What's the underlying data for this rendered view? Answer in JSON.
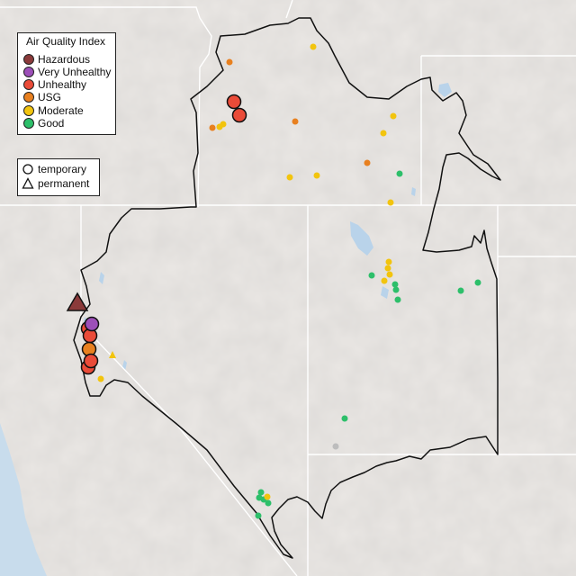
{
  "legend": {
    "title": "Air Quality Index",
    "categories": [
      {
        "label": "Hazardous",
        "color": "#8b3a3a"
      },
      {
        "label": "Very Unhealthy",
        "color": "#9c4fb8"
      },
      {
        "label": "Unhealthy",
        "color": "#ea4b38"
      },
      {
        "label": "USG",
        "color": "#e8801f"
      },
      {
        "label": "Moderate",
        "color": "#f2c40e"
      },
      {
        "label": "Good",
        "color": "#2dbf6a"
      }
    ],
    "monitor_types": [
      {
        "label": "temporary",
        "shape": "circle-icon"
      },
      {
        "label": "permanent",
        "shape": "triangle-icon"
      }
    ]
  },
  "colors": {
    "land": "#e9e6e3",
    "water": "#b9d3ea",
    "ocean": "#c8dcec",
    "border_state": "#ffffff",
    "border_region": "#111111",
    "no_data": "#bdbdbd"
  }
}
